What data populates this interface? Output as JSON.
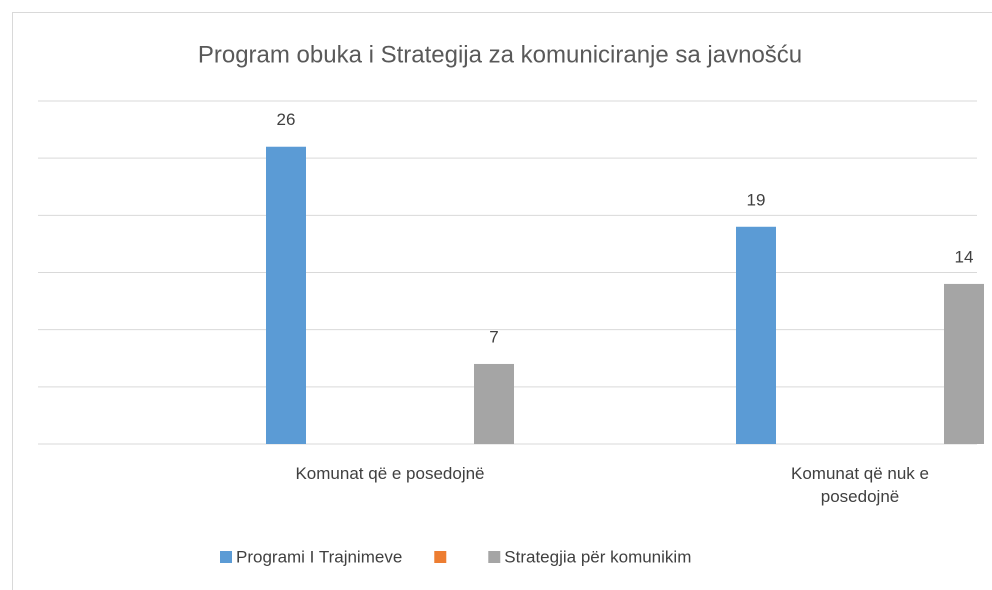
{
  "chart_data": {
    "type": "bar",
    "title": "Program obuka i  Strategija za komuniciranje sa javnošću",
    "categories": [
      "Komunat që e posedojnë",
      "Komunat që nuk e posedojnë"
    ],
    "series": [
      {
        "name": "Programi I Trajnimeve",
        "color": "#5b9bd5",
        "values": [
          26,
          19
        ]
      },
      {
        "color": "#ed7d31",
        "values": [
          null,
          null
        ]
      },
      {
        "name": "Strategjia për komunikim",
        "color": "#a5a5a5",
        "values": [
          7,
          14
        ]
      }
    ],
    "ylim": [
      0,
      30
    ],
    "yticks": [
      0,
      5,
      10,
      15,
      20,
      25,
      30
    ],
    "grid": true,
    "legend": "bottom"
  }
}
